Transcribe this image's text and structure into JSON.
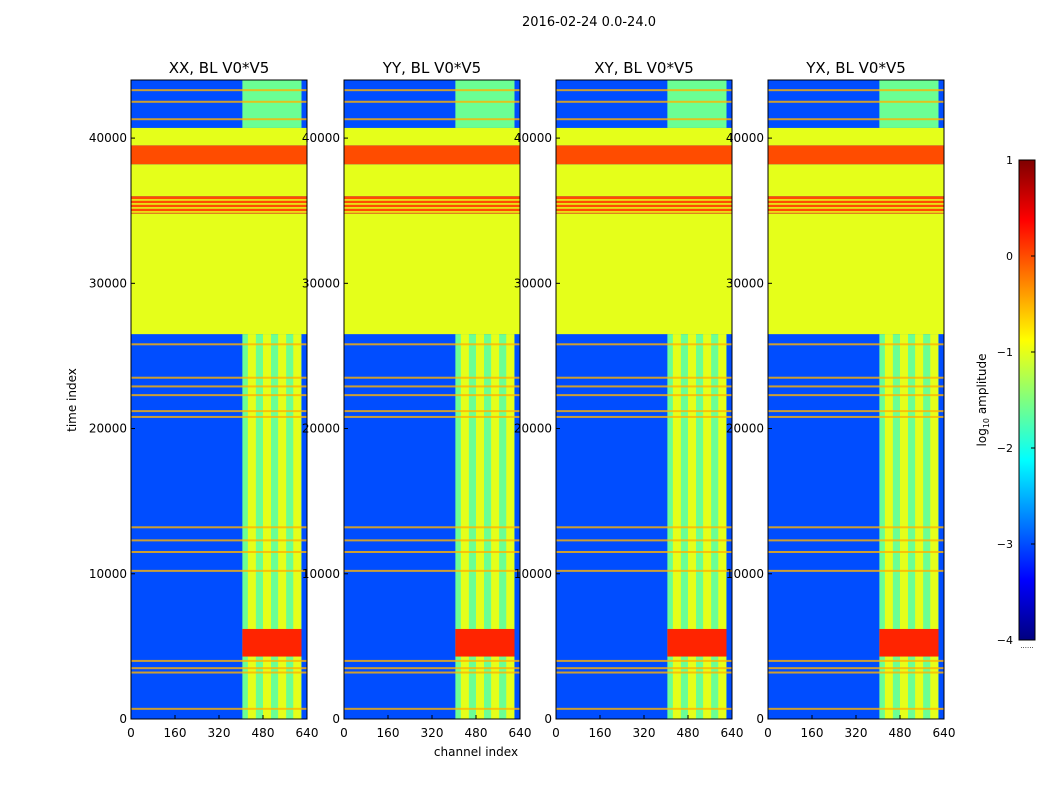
{
  "figure": {
    "suptitle": "2016-02-24 0.0-24.0",
    "xlabel": "channel index",
    "ylabel": "time index"
  },
  "chart_data": {
    "type": "heatmap",
    "colormap": "jet",
    "x_range": [
      0,
      640
    ],
    "y_range": [
      0,
      44000
    ],
    "x_ticks": [
      0,
      160,
      320,
      480,
      640
    ],
    "y_ticks": [
      0,
      10000,
      20000,
      30000,
      40000
    ],
    "panels": [
      {
        "title": "XX, BL V0*V5"
      },
      {
        "title": "YY, BL V0*V5"
      },
      {
        "title": "XY, BL V0*V5"
      },
      {
        "title": "YX, BL V0*V5"
      }
    ],
    "structure": {
      "background_level": -3,
      "active_channel_band": [
        405,
        620
      ],
      "strong_band_time": [
        4300,
        6200
      ],
      "constant_fill_blocks": [
        {
          "time": [
            26500,
            34800
          ],
          "level": -1
        },
        {
          "time": [
            34800,
            36000
          ],
          "level": 0,
          "striped": true
        },
        {
          "time": [
            36000,
            38200
          ],
          "level": -1
        },
        {
          "time": [
            38200,
            39500
          ],
          "level": 0
        },
        {
          "time": [
            39500,
            40700
          ],
          "level": -1
        }
      ],
      "flag_lines_time": [
        700,
        3200,
        3500,
        4000,
        10200,
        11500,
        12300,
        13200,
        20800,
        21200,
        22300,
        22900,
        23500,
        25800,
        41300,
        42500,
        43300
      ]
    },
    "colorbar": {
      "label": "log10 amplitude",
      "label_base": "log",
      "label_sub": "10",
      "label_rest": " amplitude",
      "range": [
        -4,
        1
      ],
      "ticks": [
        -4,
        -3,
        -2,
        -1,
        0,
        1
      ],
      "tick_labels": [
        "−4",
        "−3",
        "−2",
        "−1",
        "0",
        "1"
      ],
      "footer": "......"
    }
  }
}
